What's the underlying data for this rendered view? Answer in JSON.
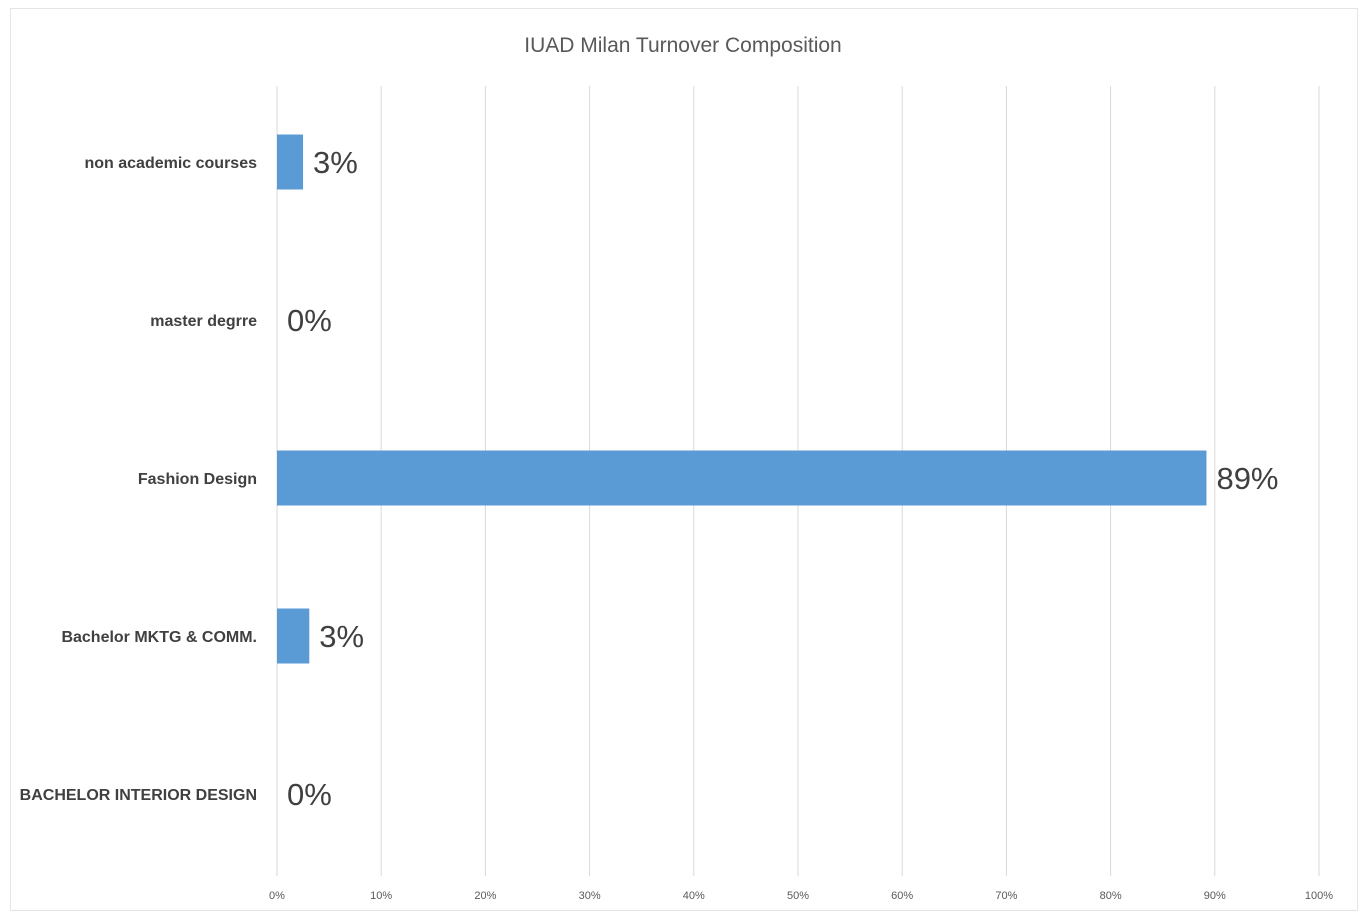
{
  "chart_data": {
    "type": "bar",
    "orientation": "horizontal",
    "title": "IUAD Milan Turnover Composition",
    "xlabel": "",
    "ylabel": "",
    "categories": [
      "non academic courses",
      "master degrre",
      "Fashion Design",
      "Bachelor MKTG & COMM.",
      "BACHELOR INTERIOR DESIGN"
    ],
    "values": [
      0.025,
      0.0,
      0.892,
      0.031,
      0.0
    ],
    "data_labels": [
      "3%",
      "0%",
      "89%",
      "3%",
      "0%"
    ],
    "xlim": [
      0,
      1
    ],
    "x_ticks": [
      0,
      0.1,
      0.2,
      0.3,
      0.4,
      0.5,
      0.6,
      0.7,
      0.8,
      0.9,
      1.0
    ],
    "x_tick_labels": [
      "0%",
      "10%",
      "20%",
      "30%",
      "40%",
      "50%",
      "60%",
      "70%",
      "80%",
      "90%",
      "100%"
    ],
    "grid": "vertical",
    "legend": "none",
    "bar_color": "#5b9bd5"
  }
}
